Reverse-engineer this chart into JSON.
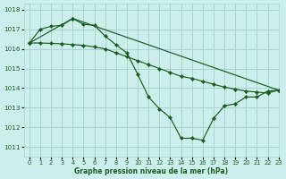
{
  "xlabel": "Graphe pression niveau de la mer (hPa)",
  "bg_color": "#cceeed",
  "grid_color": "#aad4d0",
  "line_color": "#1a5c1a",
  "xlim": [
    -0.5,
    23
  ],
  "ylim": [
    1010.5,
    1018.3
  ],
  "yticks": [
    1011,
    1012,
    1013,
    1014,
    1015,
    1016,
    1017,
    1018
  ],
  "xticks": [
    0,
    1,
    2,
    3,
    4,
    5,
    6,
    7,
    8,
    9,
    10,
    11,
    12,
    13,
    14,
    15,
    16,
    17,
    18,
    19,
    20,
    21,
    22,
    23
  ],
  "line1_x": [
    0,
    1,
    2,
    3,
    4,
    5,
    6,
    7,
    8,
    9,
    10,
    11,
    12,
    13,
    14,
    15,
    16,
    17,
    18,
    19,
    20,
    21,
    22,
    23
  ],
  "line1_y": [
    1016.3,
    1017.0,
    1017.15,
    1017.2,
    1017.55,
    1017.25,
    1017.2,
    1016.65,
    1016.2,
    1015.8,
    1014.7,
    1013.55,
    1012.95,
    1012.5,
    1011.45,
    1011.45,
    1011.35,
    1012.45,
    1013.1,
    1013.2,
    1013.55,
    1013.55,
    1013.85,
    1013.9
  ],
  "line2_x": [
    0,
    1,
    2,
    3,
    4,
    5,
    6,
    7,
    8,
    9,
    10,
    11,
    12,
    13,
    14,
    15,
    16,
    17,
    18,
    19,
    20,
    21,
    22,
    23
  ],
  "line2_y": [
    1016.3,
    1016.3,
    1016.28,
    1016.26,
    1016.22,
    1016.18,
    1016.1,
    1016.0,
    1015.8,
    1015.6,
    1015.4,
    1015.2,
    1015.0,
    1014.8,
    1014.6,
    1014.5,
    1014.35,
    1014.2,
    1014.05,
    1013.95,
    1013.85,
    1013.8,
    1013.75,
    1013.9
  ],
  "line3_x": [
    0,
    4,
    23
  ],
  "line3_y": [
    1016.3,
    1017.55,
    1013.9
  ]
}
